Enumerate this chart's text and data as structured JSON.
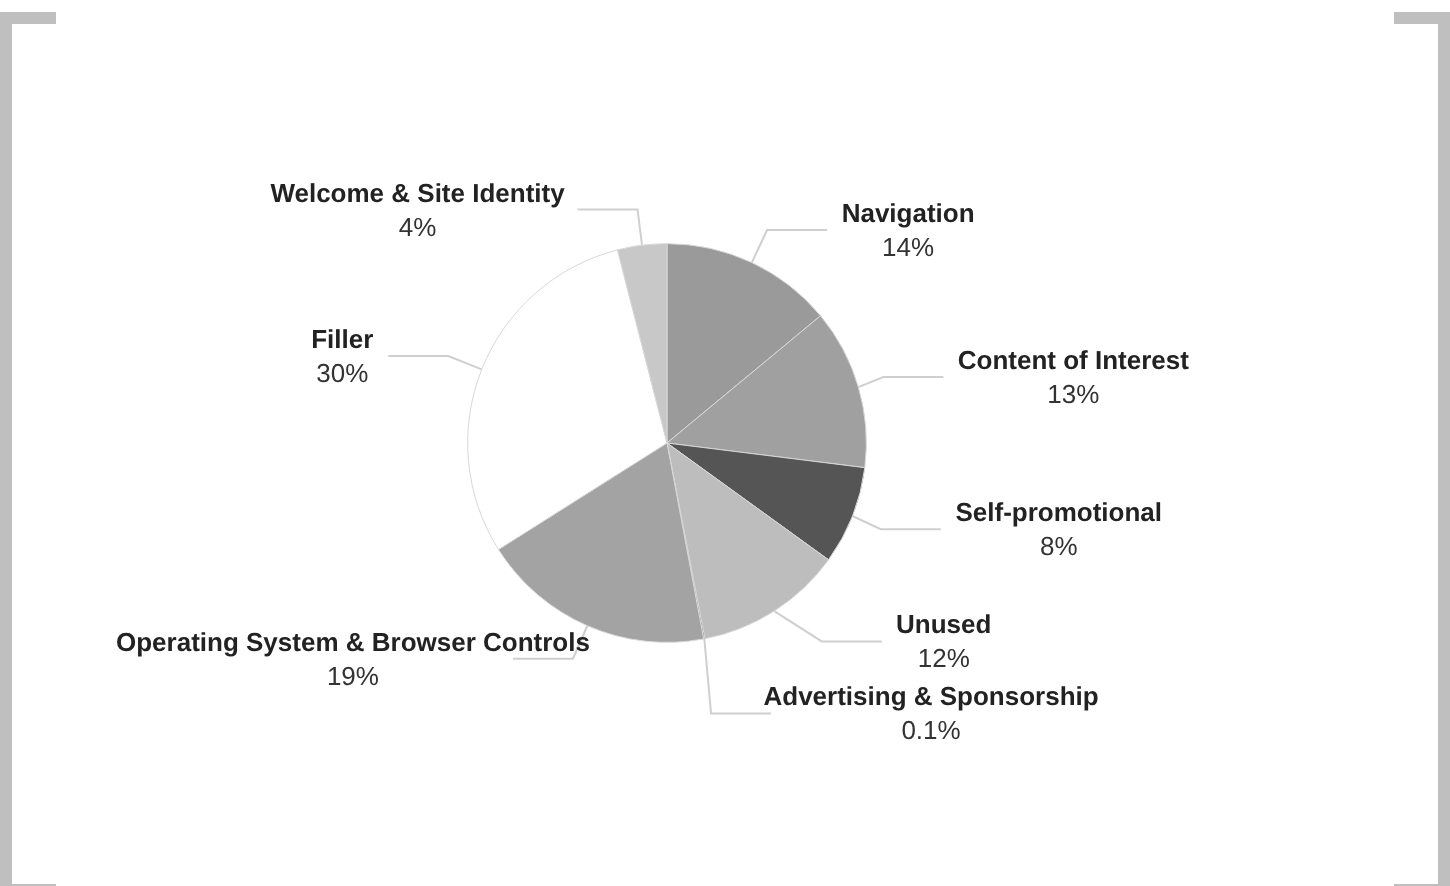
{
  "chart_data": {
    "type": "pie",
    "categories": [
      "Navigation",
      "Content of Interest",
      "Self-promotional",
      "Unused",
      "Advertising & Sponsorship",
      "Operating System & Browser Controls",
      "Filler",
      "Welcome & Site Identity"
    ],
    "values": [
      14,
      13,
      8,
      12,
      0.1,
      19,
      30,
      4
    ],
    "value_labels": [
      "14%",
      "13%",
      "8%",
      "12%",
      "0.1%",
      "19%",
      "30%",
      "4%"
    ],
    "colors": [
      "#9a9a9a",
      "#a0a0a0",
      "#555555",
      "#bdbdbd",
      "#444444",
      "#a3a3a3",
      "#ffffff",
      "#c8c8c8"
    ]
  }
}
